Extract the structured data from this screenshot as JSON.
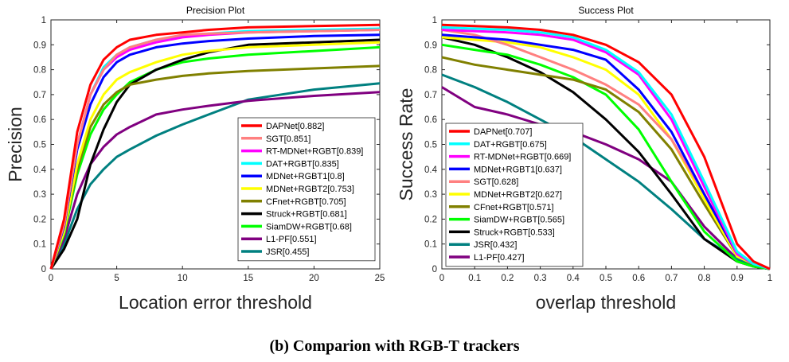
{
  "caption": "(b) Comparion with RGB-T trackers",
  "chart_data": [
    {
      "type": "line",
      "title": "Precision Plot",
      "xlabel": "Location error threshold",
      "ylabel": "Precision",
      "xlim": [
        0,
        25
      ],
      "ylim": [
        0,
        1
      ],
      "xticks": [
        0,
        5,
        10,
        15,
        20,
        25
      ],
      "yticks": [
        0,
        0.1,
        0.2,
        0.3,
        0.4,
        0.5,
        0.6,
        0.7,
        0.8,
        0.9,
        1
      ],
      "grid": false,
      "legend_position": "bottom-right",
      "x": [
        0,
        1,
        2,
        3,
        4,
        5,
        6,
        8,
        10,
        12,
        15,
        20,
        25
      ],
      "series": [
        {
          "name": "DAPNet[0.882]",
          "color": "#ff0000",
          "values": [
            0,
            0.2,
            0.55,
            0.74,
            0.84,
            0.89,
            0.92,
            0.94,
            0.95,
            0.96,
            0.97,
            0.975,
            0.98
          ]
        },
        {
          "name": "SGT[0.851]",
          "color": "#ff8080",
          "values": [
            0,
            0.18,
            0.5,
            0.7,
            0.8,
            0.86,
            0.89,
            0.92,
            0.94,
            0.945,
            0.95,
            0.955,
            0.96
          ]
        },
        {
          "name": "RT-MDNet+RGBT[0.839]",
          "color": "#ff00ff",
          "values": [
            0,
            0.18,
            0.5,
            0.7,
            0.8,
            0.85,
            0.88,
            0.91,
            0.93,
            0.94,
            0.95,
            0.955,
            0.96
          ]
        },
        {
          "name": "DAT+RGBT[0.835]",
          "color": "#00ffff",
          "values": [
            0,
            0.18,
            0.5,
            0.7,
            0.81,
            0.86,
            0.89,
            0.92,
            0.935,
            0.945,
            0.955,
            0.96,
            0.965
          ]
        },
        {
          "name": "MDNet+RGBT1[0.8]",
          "color": "#0000ff",
          "values": [
            0,
            0.17,
            0.48,
            0.66,
            0.77,
            0.83,
            0.86,
            0.89,
            0.905,
            0.915,
            0.925,
            0.935,
            0.94
          ]
        },
        {
          "name": "MDNet+RGBT2[0.753]",
          "color": "#ffff00",
          "values": [
            0,
            0.15,
            0.42,
            0.6,
            0.7,
            0.76,
            0.79,
            0.83,
            0.86,
            0.875,
            0.89,
            0.9,
            0.91
          ]
        },
        {
          "name": "CFnet+RGBT[0.705]",
          "color": "#808000",
          "values": [
            0,
            0.15,
            0.4,
            0.57,
            0.66,
            0.71,
            0.74,
            0.76,
            0.775,
            0.785,
            0.795,
            0.805,
            0.815
          ]
        },
        {
          "name": "Struck+RGBT[0.681]",
          "color": "#000000",
          "values": [
            0,
            0.08,
            0.2,
            0.42,
            0.56,
            0.67,
            0.74,
            0.8,
            0.84,
            0.87,
            0.9,
            0.91,
            0.92
          ]
        },
        {
          "name": "SiamDW+RGBT[0.68]",
          "color": "#00ff00",
          "values": [
            0,
            0.14,
            0.38,
            0.54,
            0.64,
            0.7,
            0.75,
            0.8,
            0.83,
            0.845,
            0.86,
            0.875,
            0.89
          ]
        },
        {
          "name": "L1-PF[0.551]",
          "color": "#800080",
          "values": [
            0,
            0.12,
            0.3,
            0.42,
            0.49,
            0.54,
            0.57,
            0.62,
            0.64,
            0.655,
            0.675,
            0.695,
            0.71
          ]
        },
        {
          "name": "JSR[0.455]",
          "color": "#008080",
          "values": [
            0,
            0.1,
            0.24,
            0.34,
            0.4,
            0.45,
            0.48,
            0.535,
            0.58,
            0.62,
            0.68,
            0.72,
            0.745
          ]
        }
      ]
    },
    {
      "type": "line",
      "title": "Success Plot",
      "xlabel": "overlap threshold",
      "ylabel": "Success Rate",
      "xlim": [
        0,
        1
      ],
      "ylim": [
        0,
        1
      ],
      "xticks": [
        0,
        0.1,
        0.2,
        0.3,
        0.4,
        0.5,
        0.6,
        0.7,
        0.8,
        0.9,
        1
      ],
      "yticks": [
        0,
        0.1,
        0.2,
        0.3,
        0.4,
        0.5,
        0.6,
        0.7,
        0.8,
        0.9,
        1
      ],
      "grid": false,
      "legend_position": "bottom-left",
      "x": [
        0,
        0.1,
        0.2,
        0.3,
        0.4,
        0.5,
        0.6,
        0.7,
        0.8,
        0.9,
        0.95,
        1
      ],
      "series": [
        {
          "name": "DAPNet[0.707]",
          "color": "#ff0000",
          "values": [
            0.98,
            0.975,
            0.97,
            0.96,
            0.94,
            0.9,
            0.83,
            0.7,
            0.45,
            0.1,
            0.03,
            0
          ]
        },
        {
          "name": "DAT+RGBT[0.675]",
          "color": "#00ffff",
          "values": [
            0.97,
            0.965,
            0.96,
            0.95,
            0.93,
            0.88,
            0.79,
            0.62,
            0.35,
            0.07,
            0.02,
            0
          ]
        },
        {
          "name": "RT-MDNet+RGBT[0.669]",
          "color": "#ff00ff",
          "values": [
            0.96,
            0.955,
            0.95,
            0.94,
            0.92,
            0.87,
            0.78,
            0.6,
            0.33,
            0.06,
            0.02,
            0
          ]
        },
        {
          "name": "MDNet+RGBT1[0.637]",
          "color": "#0000ff",
          "values": [
            0.94,
            0.93,
            0.92,
            0.9,
            0.88,
            0.84,
            0.72,
            0.55,
            0.3,
            0.06,
            0.02,
            0
          ]
        },
        {
          "name": "SGT[0.628]",
          "color": "#ff8080",
          "values": [
            0.96,
            0.94,
            0.9,
            0.85,
            0.8,
            0.74,
            0.66,
            0.52,
            0.3,
            0.06,
            0.02,
            0
          ]
        },
        {
          "name": "MDNet+RGBT2[0.627]",
          "color": "#ffff00",
          "values": [
            0.93,
            0.92,
            0.91,
            0.89,
            0.85,
            0.8,
            0.7,
            0.52,
            0.28,
            0.05,
            0.02,
            0
          ]
        },
        {
          "name": "CFnet+RGBT[0.571]",
          "color": "#808000",
          "values": [
            0.85,
            0.82,
            0.8,
            0.78,
            0.76,
            0.72,
            0.63,
            0.48,
            0.26,
            0.05,
            0.02,
            0
          ]
        },
        {
          "name": "SiamDW+RGBT[0.565]",
          "color": "#00ff00",
          "values": [
            0.9,
            0.88,
            0.86,
            0.82,
            0.77,
            0.7,
            0.56,
            0.35,
            0.15,
            0.03,
            0.01,
            0
          ]
        },
        {
          "name": "Struck+RGBT[0.533]",
          "color": "#000000",
          "values": [
            0.93,
            0.9,
            0.85,
            0.79,
            0.71,
            0.6,
            0.47,
            0.3,
            0.12,
            0.03,
            0.01,
            0
          ]
        },
        {
          "name": "JSR[0.432]",
          "color": "#008080",
          "values": [
            0.78,
            0.73,
            0.67,
            0.6,
            0.53,
            0.44,
            0.35,
            0.24,
            0.12,
            0.04,
            0.01,
            0
          ]
        },
        {
          "name": "L1-PF[0.427]",
          "color": "#800080",
          "values": [
            0.73,
            0.65,
            0.62,
            0.58,
            0.55,
            0.5,
            0.44,
            0.35,
            0.17,
            0.04,
            0.01,
            0
          ]
        }
      ]
    }
  ]
}
